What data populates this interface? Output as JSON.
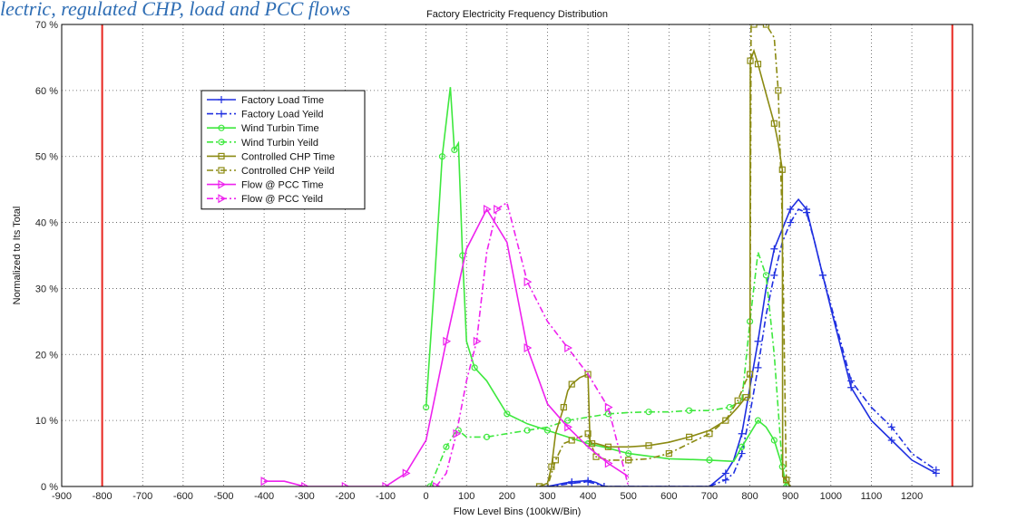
{
  "caption": "lectric, regulated CHP, load and PCC flows",
  "chart_data": {
    "type": "line",
    "title": "Factory Electricity Frequency Distribution",
    "xlabel": "Flow Level Bins (100kW/Bin)",
    "ylabel": "Normalized to Its Total",
    "xlim": [
      -900,
      1350
    ],
    "ylim": [
      0,
      70
    ],
    "xticks": [
      -900,
      -800,
      -700,
      -600,
      -500,
      -400,
      -300,
      -200,
      -100,
      0,
      100,
      200,
      300,
      400,
      500,
      600,
      700,
      800,
      900,
      1000,
      1100,
      1200
    ],
    "yticks": [
      0,
      10,
      20,
      30,
      40,
      50,
      60,
      70
    ],
    "ytick_labels": [
      "0 %",
      "10 %",
      "20 %",
      "30 %",
      "40 %",
      "50 %",
      "60 %",
      "70 %"
    ],
    "grid": true,
    "legend_position": "upper-left",
    "vertical_lines": [
      {
        "x": -800,
        "color": "#e8261f"
      },
      {
        "x": 1300,
        "color": "#e8261f"
      }
    ],
    "series": [
      {
        "name": "Factory Load Time",
        "color": "#1f2fe0",
        "style": "solid",
        "marker": "plus",
        "x": [
          300,
          340,
          360,
          380,
          400,
          420,
          440,
          700,
          740,
          760,
          780,
          800,
          820,
          840,
          860,
          880,
          900,
          920,
          940,
          960,
          980,
          1000,
          1050,
          1100,
          1150,
          1200,
          1260
        ],
        "y": [
          0,
          0.5,
          0.7,
          0.8,
          0.9,
          0.6,
          0,
          0,
          2,
          4,
          8,
          15,
          22,
          30,
          36,
          39,
          42,
          43.5,
          42,
          37,
          32,
          27,
          15,
          10,
          7,
          4,
          2
        ]
      },
      {
        "name": "Factory Load Yeild",
        "color": "#1f2fe0",
        "style": "dashdot",
        "marker": "plus",
        "x": [
          300,
          340,
          360,
          380,
          400,
          420,
          440,
          700,
          740,
          760,
          780,
          800,
          820,
          840,
          860,
          880,
          900,
          920,
          940,
          960,
          980,
          1000,
          1050,
          1100,
          1150,
          1200,
          1260
        ],
        "y": [
          0,
          0.3,
          0.5,
          0.6,
          0.7,
          0.4,
          0,
          0,
          1,
          2,
          5,
          11,
          18,
          26,
          32,
          37,
          40,
          42,
          41.5,
          37,
          32,
          27.5,
          16,
          12,
          9,
          5,
          2.5
        ]
      },
      {
        "name": "Wind Turbin Time",
        "color": "#3ee83e",
        "style": "solid",
        "marker": "circle",
        "x": [
          0,
          20,
          40,
          60,
          70,
          80,
          90,
          100,
          120,
          150,
          200,
          250,
          300,
          350,
          400,
          450,
          500,
          600,
          700,
          760,
          780,
          800,
          820,
          840,
          860,
          880,
          890
        ],
        "y": [
          12,
          30,
          50,
          60.5,
          51,
          52,
          35,
          22,
          18,
          16,
          11,
          9.5,
          8.5,
          7.5,
          6.5,
          5.8,
          5,
          4.2,
          4,
          3.8,
          6,
          8,
          10,
          9,
          7,
          3,
          0
        ]
      },
      {
        "name": "Wind Turbin Yeild",
        "color": "#3ee83e",
        "style": "dashdot",
        "marker": "circle",
        "x": [
          10,
          30,
          50,
          70,
          80,
          100,
          150,
          200,
          250,
          300,
          350,
          400,
          450,
          500,
          550,
          600,
          650,
          700,
          750,
          780,
          800,
          820,
          840,
          860,
          880,
          890
        ],
        "y": [
          0,
          3,
          6,
          8,
          8.5,
          7.5,
          7.5,
          8,
          8.5,
          9,
          10,
          10.5,
          11,
          11.2,
          11.3,
          11.3,
          11.5,
          11.5,
          12,
          13,
          25,
          35.5,
          32,
          20,
          3,
          0
        ]
      },
      {
        "name": "Controlled CHP Time",
        "color": "#8b8a12",
        "style": "solid",
        "marker": "square",
        "x": [
          280,
          300,
          310,
          320,
          340,
          350,
          360,
          380,
          400,
          405,
          410,
          420,
          450,
          500,
          550,
          600,
          650,
          700,
          740,
          770,
          790,
          800,
          801,
          810,
          820,
          840,
          860,
          870,
          880,
          881,
          890,
          900
        ],
        "y": [
          0,
          0.5,
          3,
          8,
          12,
          14.5,
          15.5,
          16.5,
          17,
          7,
          6.5,
          6.5,
          6,
          6,
          6.2,
          6.7,
          7.5,
          8.5,
          10,
          12,
          13.5,
          13.5,
          64.5,
          66,
          64,
          59.5,
          55,
          52,
          48,
          1.5,
          1,
          0
        ]
      },
      {
        "name": "Controlled CHP Yeild",
        "color": "#8b8a12",
        "style": "dashdot",
        "marker": "square",
        "x": [
          280,
          300,
          320,
          340,
          360,
          380,
          400,
          410,
          420,
          450,
          500,
          550,
          600,
          650,
          700,
          740,
          770,
          790,
          800,
          803,
          810,
          820,
          840,
          860,
          870,
          880,
          890,
          900
        ],
        "y": [
          0,
          0,
          4,
          6.5,
          7,
          7.5,
          8,
          6,
          4.5,
          4,
          4,
          4.2,
          5,
          6.5,
          8,
          10,
          13,
          16,
          17,
          70,
          70,
          70,
          70,
          68,
          60,
          40,
          1,
          0
        ]
      },
      {
        "name": "Flow @ PCC Time",
        "color": "#ee22ee",
        "style": "solid",
        "marker": "triangle-right",
        "x": [
          -400,
          -350,
          -300,
          -250,
          -200,
          -150,
          -100,
          -75,
          -50,
          0,
          50,
          100,
          150,
          200,
          250,
          300,
          350,
          400,
          450,
          500
        ],
        "y": [
          0.8,
          0.8,
          0,
          0,
          0,
          0,
          0,
          1,
          2,
          7,
          22,
          36,
          42,
          37,
          21,
          12.5,
          9,
          6,
          3.5,
          1.5
        ]
      },
      {
        "name": "Flow @ PCC Yeild",
        "color": "#ee22ee",
        "style": "dashdot",
        "marker": "triangle-right",
        "x": [
          25,
          50,
          75,
          100,
          125,
          150,
          175,
          200,
          250,
          300,
          350,
          400,
          450,
          500
        ],
        "y": [
          0,
          2,
          8,
          16,
          22,
          35.5,
          42,
          43,
          31,
          25,
          21,
          17,
          12,
          0
        ]
      }
    ]
  }
}
